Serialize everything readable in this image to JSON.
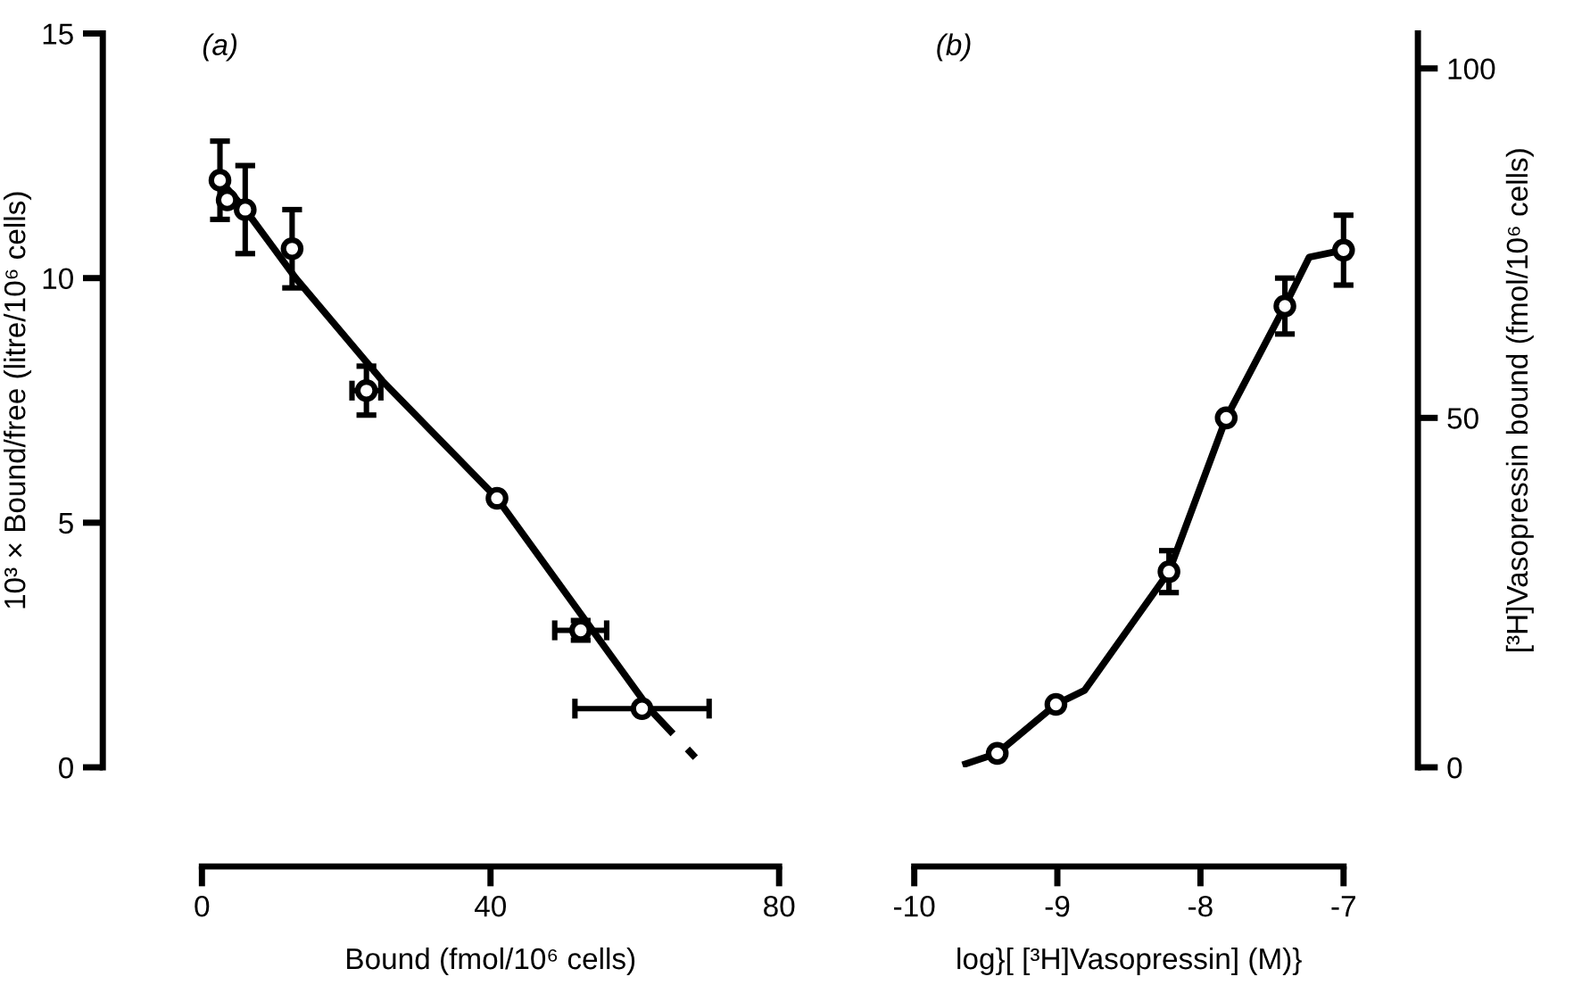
{
  "chart_data": [
    {
      "type": "scatter",
      "xlabel": "Bound (fmol/10⁶ cells)",
      "ylabel": "10³ × Bound/free (litre/10⁶ cells)",
      "annotations": [
        "(a)"
      ],
      "xlim": [
        0,
        80
      ],
      "xticks": [
        0,
        40,
        80
      ],
      "ylim": [
        0,
        15
      ],
      "yticks": [
        0,
        5,
        10,
        15
      ],
      "grid": false,
      "legend": false,
      "series": [
        {
          "color": "#000000",
          "marker": "circle",
          "x": [
            2.5,
            3.5,
            6,
            12.5,
            22.8,
            40.9,
            52.5,
            61
          ],
          "values": [
            12.0,
            11.6,
            11.4,
            10.6,
            7.7,
            5.5,
            2.8,
            1.2
          ],
          "errors": [
            0.8,
            null,
            0.9,
            0.8,
            0.5,
            null,
            0.2,
            null
          ],
          "xerrors": [
            null,
            null,
            null,
            null,
            2,
            null,
            3.6,
            9.3
          ]
        },
        {
          "type": "line",
          "color": "#000000",
          "marker": "none",
          "line_style": "solid",
          "x": [
            2.5,
            6,
            10,
            13,
            25,
            40.9,
            62
          ],
          "values": [
            12.0,
            11.4,
            10.6,
            10.0,
            7.9,
            5.5,
            1.2
          ]
        },
        {
          "type": "line",
          "color": "#000000",
          "marker": "none",
          "line_style": "dashed",
          "x": [
            62,
            68.4
          ],
          "values": [
            1.2,
            0.2
          ]
        }
      ]
    },
    {
      "type": "scatter",
      "xlabel": "log}[ [³H]Vasopressin] (M)}",
      "y2label": "[³H]Vasopressin bound (fmol/10⁶ cells)",
      "annotations": [
        "(b)"
      ],
      "xlim": [
        -10,
        -7
      ],
      "xticks": [
        -10,
        -9,
        -8,
        -7
      ],
      "y2lim": [
        0,
        105
      ],
      "y2ticks": [
        0,
        50,
        100
      ],
      "grid": false,
      "legend": false,
      "series": [
        {
          "axis": "y2",
          "color": "#000000",
          "marker": "circle",
          "x": [
            -9.42,
            -9.01,
            -8.22,
            -7.82,
            -7.41,
            -7.0
          ],
          "values": [
            2,
            9,
            28,
            50,
            66,
            74
          ],
          "errors": [
            null,
            null,
            3,
            null,
            4,
            5
          ]
        },
        {
          "type": "line",
          "axis": "y2",
          "color": "#000000",
          "marker": "none",
          "line_style": "solid",
          "x": [
            -9.64,
            -9.42,
            -9.01,
            -8.81,
            -8.22,
            -7.82,
            -7.41,
            -7.24,
            -7.0
          ],
          "values": [
            0.5,
            2,
            9,
            11,
            28,
            50,
            66,
            73,
            74
          ]
        }
      ]
    }
  ]
}
